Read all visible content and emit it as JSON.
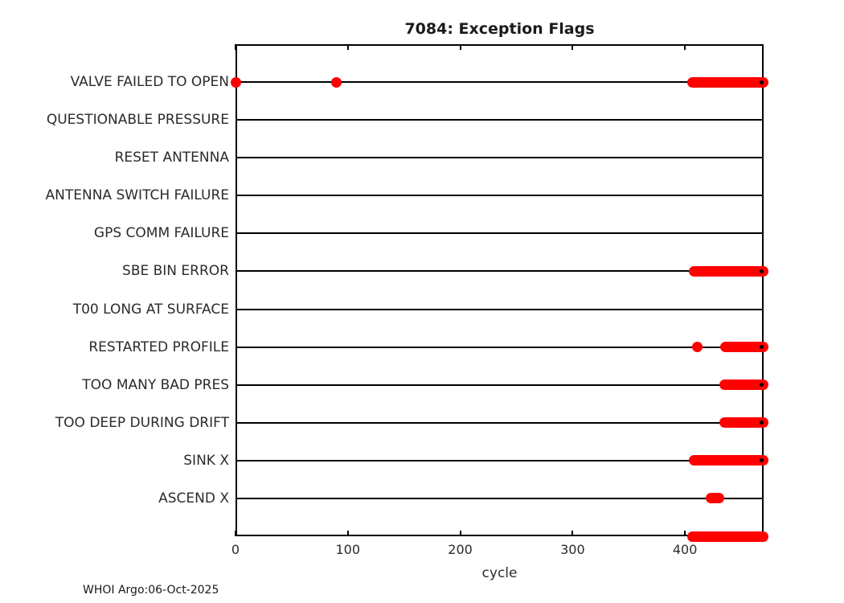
{
  "chart_data": {
    "type": "scatter",
    "title": "7084: Exception Flags",
    "xlabel": "cycle",
    "footer": "WHOI Argo:06-Oct-2025",
    "xlim": [
      0,
      470
    ],
    "xticks": [
      0,
      100,
      200,
      300,
      400
    ],
    "grid": false,
    "legend": "none",
    "marker_color": "#ff0000",
    "line_color": "#000000",
    "rows": [
      {
        "label": "VALVE FAILED TO OPEN",
        "points": [
          0,
          90
        ],
        "segments": [
          [
            407,
            470
          ]
        ],
        "latest_marker": 468
      },
      {
        "label": "QUESTIONABLE PRESSURE",
        "points": [],
        "segments": []
      },
      {
        "label": "RESET ANTENNA",
        "points": [],
        "segments": []
      },
      {
        "label": "ANTENNA SWITCH FAILURE",
        "points": [],
        "segments": []
      },
      {
        "label": "GPS COMM FAILURE",
        "points": [],
        "segments": []
      },
      {
        "label": "SBE BIN ERROR",
        "points": [],
        "segments": [
          [
            408,
            470
          ]
        ],
        "latest_marker": 468
      },
      {
        "label": "T00 LONG AT SURFACE",
        "points": [],
        "segments": []
      },
      {
        "label": "RESTARTED PROFILE",
        "points": [
          411
        ],
        "segments": [
          [
            436,
            470
          ]
        ],
        "latest_marker": 468
      },
      {
        "label": "TOO MANY BAD PRES",
        "points": [],
        "segments": [
          [
            435,
            470
          ]
        ],
        "latest_marker": 468
      },
      {
        "label": "TOO DEEP DURING DRIFT",
        "points": [],
        "segments": [
          [
            435,
            470
          ]
        ],
        "latest_marker": 468
      },
      {
        "label": "SINK X",
        "points": [],
        "segments": [
          [
            408,
            470
          ]
        ],
        "latest_marker": 468
      },
      {
        "label": "ASCEND X",
        "points": [],
        "segments": [
          [
            423,
            430
          ]
        ]
      },
      {
        "label": "",
        "points": [],
        "segments": [
          [
            407,
            470
          ]
        ]
      }
    ]
  }
}
